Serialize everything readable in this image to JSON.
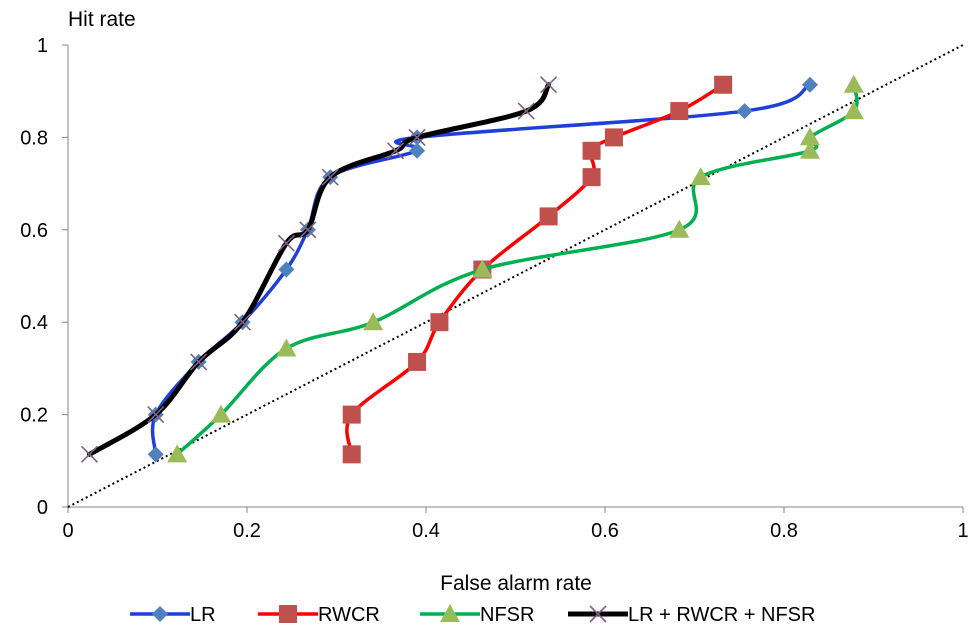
{
  "chart_data": {
    "type": "line",
    "xlabel": "False alarm rate",
    "ylabel": "Hit rate",
    "xlim": [
      0,
      1
    ],
    "ylim": [
      0,
      1
    ],
    "xticks": [
      0,
      0.2,
      0.4,
      0.6,
      0.8,
      1
    ],
    "yticks": [
      0,
      0.2,
      0.4,
      0.6,
      0.8,
      1
    ],
    "x_tick_labels": [
      "0",
      "0.2",
      "0.4",
      "0.6",
      "0.8",
      "1"
    ],
    "y_tick_labels": [
      "0",
      "0.2",
      "0.4",
      "0.6",
      "0.8",
      "1"
    ],
    "grid": false,
    "legend_position": "bottom",
    "reference_line": {
      "style": "dotted",
      "color": "#000000",
      "x": [
        0,
        1
      ],
      "y": [
        0,
        1
      ]
    },
    "series": [
      {
        "name": "LR",
        "color": "#1f3fd9",
        "marker": "diamond",
        "marker_color": "#4f81bd",
        "points": [
          [
            0.098,
            0.114
          ],
          [
            0.098,
            0.2
          ],
          [
            0.146,
            0.314
          ],
          [
            0.195,
            0.4
          ],
          [
            0.244,
            0.514
          ],
          [
            0.268,
            0.6
          ],
          [
            0.293,
            0.714
          ],
          [
            0.39,
            0.771
          ],
          [
            0.39,
            0.8
          ],
          [
            0.756,
            0.857
          ],
          [
            0.829,
            0.914
          ]
        ]
      },
      {
        "name": "RWCR",
        "color": "#ff0000",
        "marker": "square",
        "marker_color": "#c0504d",
        "points": [
          [
            0.317,
            0.114
          ],
          [
            0.317,
            0.2
          ],
          [
            0.39,
            0.314
          ],
          [
            0.415,
            0.4
          ],
          [
            0.463,
            0.514
          ],
          [
            0.537,
            0.629
          ],
          [
            0.585,
            0.714
          ],
          [
            0.585,
            0.771
          ],
          [
            0.61,
            0.8
          ],
          [
            0.683,
            0.857
          ],
          [
            0.732,
            0.914
          ]
        ]
      },
      {
        "name": "NFSR",
        "color": "#00b050",
        "marker": "triangle",
        "marker_color": "#9bbb59",
        "points": [
          [
            0.122,
            0.114
          ],
          [
            0.171,
            0.2
          ],
          [
            0.244,
            0.343
          ],
          [
            0.341,
            0.4
          ],
          [
            0.463,
            0.514
          ],
          [
            0.683,
            0.6
          ],
          [
            0.707,
            0.714
          ],
          [
            0.829,
            0.771
          ],
          [
            0.829,
            0.8
          ],
          [
            0.878,
            0.857
          ],
          [
            0.878,
            0.914
          ]
        ]
      },
      {
        "name": "LR + RWCR + NFSR",
        "color": "#000000",
        "marker": "x",
        "marker_color": "#7f6084",
        "points": [
          [
            0.024,
            0.114
          ],
          [
            0.098,
            0.2
          ],
          [
            0.146,
            0.314
          ],
          [
            0.195,
            0.4
          ],
          [
            0.244,
            0.571
          ],
          [
            0.268,
            0.6
          ],
          [
            0.293,
            0.714
          ],
          [
            0.366,
            0.771
          ],
          [
            0.39,
            0.8
          ],
          [
            0.512,
            0.857
          ],
          [
            0.537,
            0.914
          ]
        ]
      }
    ]
  }
}
